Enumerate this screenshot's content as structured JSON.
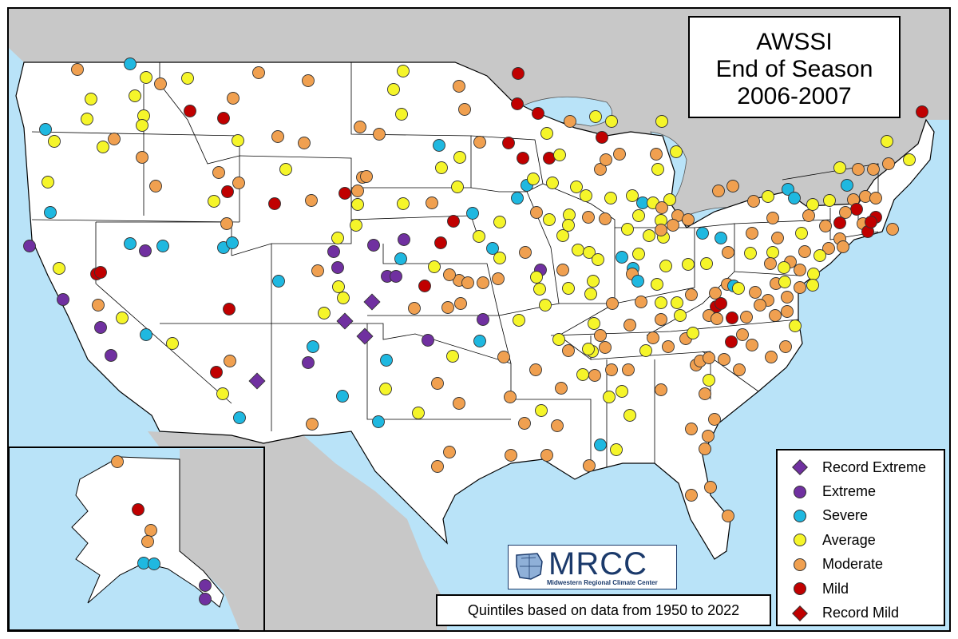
{
  "title": {
    "line1": "AWSSI",
    "line2": "End of Season",
    "line3": "2006-2007"
  },
  "legend": [
    {
      "label": "Record Extreme",
      "shape": "diamond",
      "color": "#7030a0"
    },
    {
      "label": "Extreme",
      "shape": "circle",
      "color": "#7030a0"
    },
    {
      "label": "Severe",
      "shape": "circle",
      "color": "#1fb8e0"
    },
    {
      "label": "Average",
      "shape": "circle",
      "color": "#f5f52a"
    },
    {
      "label": "Moderate",
      "shape": "circle",
      "color": "#f0a050"
    },
    {
      "label": "Mild",
      "shape": "circle",
      "color": "#c00000"
    },
    {
      "label": "Record Mild",
      "shape": "diamond",
      "color": "#c00000"
    }
  ],
  "note": "Quintiles based on data from 1950 to 2022",
  "logo": {
    "name": "MRCC",
    "subtitle": "Midwestern Regional Climate Center"
  },
  "colors": {
    "water": "#b9e3f8",
    "land_foreign": "#c8c8c8",
    "land_us": "#ffffff"
  }
}
